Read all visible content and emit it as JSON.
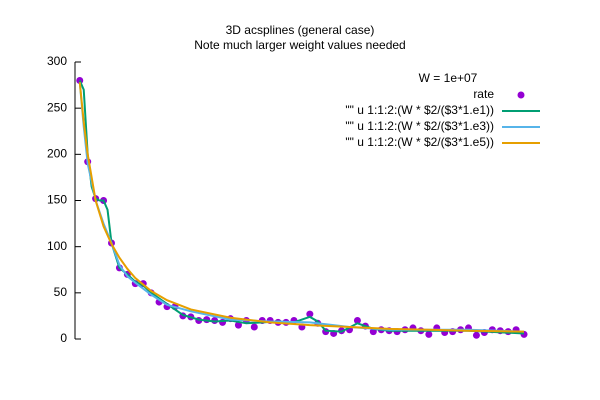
{
  "chart_data": {
    "type": "line",
    "title": "3D acsplines (general case)",
    "subtitle": "Note much larger weight values needed",
    "annotation": "W = 1e+07",
    "xlim": [
      0.4,
      57.5
    ],
    "ylim": [
      0,
      300
    ],
    "yticks": [
      0,
      50,
      100,
      150,
      200,
      250,
      300
    ],
    "grid": false,
    "legend": "top-right",
    "series": [
      {
        "name": "rate",
        "color": "#9400d3",
        "style": "points",
        "x": [
          1,
          2,
          3,
          4,
          5,
          6,
          7,
          8,
          9,
          10,
          11,
          12,
          13,
          14,
          15,
          16,
          17,
          18,
          19,
          20,
          21,
          22,
          23,
          24,
          25,
          26,
          27,
          28,
          29,
          30,
          31,
          32,
          33,
          34,
          35,
          36,
          37,
          38,
          39,
          40,
          41,
          42,
          43,
          44,
          45,
          46,
          47,
          48,
          49,
          50,
          51,
          52,
          53,
          54,
          55,
          56,
          57
        ],
        "values": [
          280,
          192,
          152,
          150,
          104,
          77,
          70,
          60,
          60,
          50,
          40,
          35,
          35,
          25,
          24,
          20,
          21,
          20,
          18,
          22,
          15,
          20,
          13,
          20,
          20,
          18,
          18,
          20,
          13,
          27,
          17,
          8,
          6,
          9,
          10,
          20,
          14,
          8,
          10,
          9,
          8,
          10,
          12,
          9,
          5,
          12,
          7,
          8,
          10,
          12,
          4,
          7,
          10,
          9,
          8,
          10,
          5
        ]
      },
      {
        "name": "\"\" u 1:1:2:(W * $2/($3*1.e1))",
        "color": "#009e73",
        "style": "line",
        "x": [
          1,
          1.5,
          2,
          2.5,
          3,
          3.5,
          4,
          4.5,
          5,
          6,
          7,
          8,
          9,
          10,
          12,
          14,
          16,
          18,
          20,
          22,
          24,
          26,
          28,
          30,
          31,
          32,
          34,
          36,
          38,
          40,
          45,
          50,
          57
        ],
        "values": [
          280,
          270,
          200,
          165,
          152,
          150,
          150,
          140,
          104,
          77,
          70,
          62,
          58,
          50,
          38,
          26,
          21,
          19,
          20,
          17,
          18,
          19,
          18,
          24,
          19,
          9,
          8,
          17,
          11,
          9,
          9,
          9,
          6
        ]
      },
      {
        "name": "\"\" u 1:1:2:(W * $2/($3*1.e3))",
        "color": "#56b4e9",
        "style": "line",
        "x": [
          1,
          1.5,
          2,
          3,
          4,
          5,
          6,
          7,
          8,
          10,
          12,
          15,
          20,
          25,
          30,
          35,
          40,
          45,
          50,
          57
        ],
        "values": [
          278,
          230,
          190,
          150,
          125,
          104,
          80,
          68,
          61,
          48,
          37,
          30,
          21,
          19,
          18,
          13,
          10,
          10,
          10,
          8
        ]
      },
      {
        "name": "\"\" u 1:1:2:(W * $2/($3*1.e5))",
        "color": "#e69f00",
        "style": "line",
        "x": [
          1,
          1.5,
          2,
          3,
          4,
          5,
          6,
          7,
          8,
          10,
          12,
          15,
          20,
          25,
          30,
          35,
          40,
          45,
          50,
          57
        ],
        "values": [
          278,
          235,
          200,
          150,
          122,
          103,
          88,
          76,
          66,
          52,
          42,
          32,
          23,
          18,
          15,
          13,
          11,
          10,
          9,
          8
        ]
      }
    ]
  }
}
